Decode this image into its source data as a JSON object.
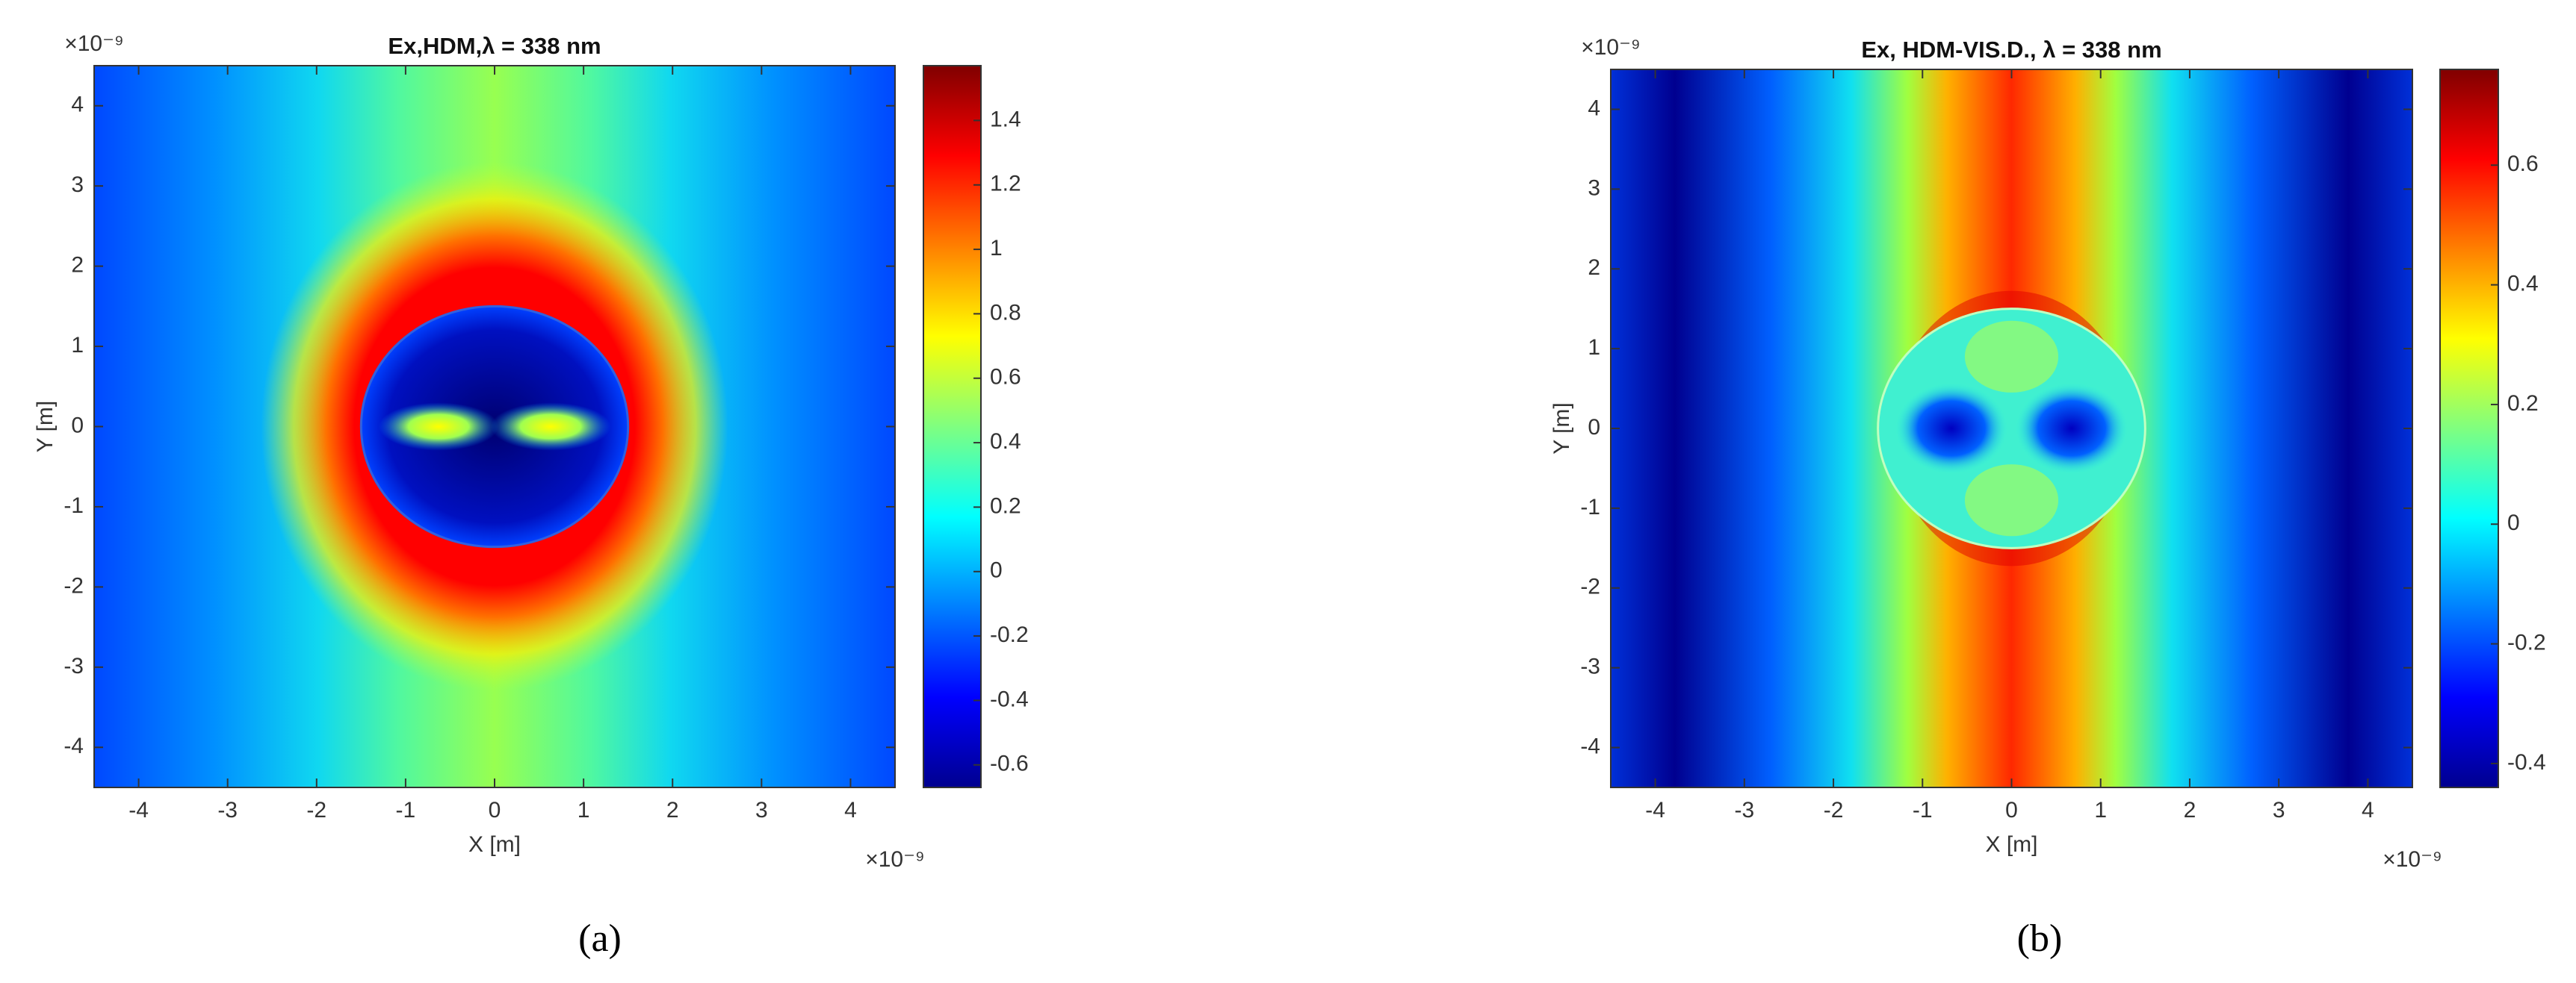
{
  "chart_data": [
    {
      "type": "heatmap",
      "title": "Ex,HDM,λ = 338 nm",
      "xlabel": "X [m]",
      "ylabel": "Y [m]",
      "x_multiplier": "×10⁻⁹",
      "y_multiplier": "×10⁻⁹",
      "colormap": "jet",
      "xlim": [
        -4.5e-09,
        4.5e-09
      ],
      "ylim": [
        -4.5e-09,
        4.5e-09
      ],
      "xticks": [
        {
          "value": -4e-09,
          "label": "-4"
        },
        {
          "value": -3e-09,
          "label": "-3"
        },
        {
          "value": -2e-09,
          "label": "-2"
        },
        {
          "value": -1e-09,
          "label": "-1"
        },
        {
          "value": 0,
          "label": "0"
        },
        {
          "value": 1e-09,
          "label": "1"
        },
        {
          "value": 2e-09,
          "label": "2"
        },
        {
          "value": 3e-09,
          "label": "3"
        },
        {
          "value": 4e-09,
          "label": "4"
        }
      ],
      "yticks": [
        {
          "value": -4e-09,
          "label": "-4"
        },
        {
          "value": -3e-09,
          "label": "-3"
        },
        {
          "value": -2e-09,
          "label": "-2"
        },
        {
          "value": -1e-09,
          "label": "-1"
        },
        {
          "value": 0,
          "label": "0"
        },
        {
          "value": 1e-09,
          "label": "1"
        },
        {
          "value": 2e-09,
          "label": "2"
        },
        {
          "value": 3e-09,
          "label": "3"
        },
        {
          "value": 4e-09,
          "label": "4"
        }
      ],
      "clim": [
        -0.67,
        1.57
      ],
      "cticks": [
        -0.6,
        -0.4,
        -0.2,
        0,
        0.2,
        0.4,
        0.6,
        0.8,
        1,
        1.2,
        1.4
      ],
      "caption": "(a)"
    },
    {
      "type": "heatmap",
      "title": "Ex, HDM-VIS.D., λ = 338 nm",
      "xlabel": "X [m]",
      "ylabel": "Y [m]",
      "x_multiplier": "×10⁻⁹",
      "y_multiplier": "×10⁻⁹",
      "colormap": "jet",
      "xlim": [
        -4.5e-09,
        4.5e-09
      ],
      "ylim": [
        -4.5e-09,
        4.5e-09
      ],
      "xticks": [
        {
          "value": -4e-09,
          "label": "-4"
        },
        {
          "value": -3e-09,
          "label": "-3"
        },
        {
          "value": -2e-09,
          "label": "-2"
        },
        {
          "value": -1e-09,
          "label": "-1"
        },
        {
          "value": 0,
          "label": "0"
        },
        {
          "value": 1e-09,
          "label": "1"
        },
        {
          "value": 2e-09,
          "label": "2"
        },
        {
          "value": 3e-09,
          "label": "3"
        },
        {
          "value": 4e-09,
          "label": "4"
        }
      ],
      "yticks": [
        {
          "value": -4e-09,
          "label": "-4"
        },
        {
          "value": -3e-09,
          "label": "-3"
        },
        {
          "value": -2e-09,
          "label": "-2"
        },
        {
          "value": -1e-09,
          "label": "-1"
        },
        {
          "value": 0,
          "label": "0"
        },
        {
          "value": 1e-09,
          "label": "1"
        },
        {
          "value": 2e-09,
          "label": "2"
        },
        {
          "value": 3e-09,
          "label": "3"
        },
        {
          "value": 4e-09,
          "label": "4"
        }
      ],
      "clim": [
        -0.44,
        0.76
      ],
      "cticks": [
        -0.4,
        -0.2,
        0,
        0.2,
        0.4,
        0.6
      ],
      "caption": "(b)"
    }
  ]
}
